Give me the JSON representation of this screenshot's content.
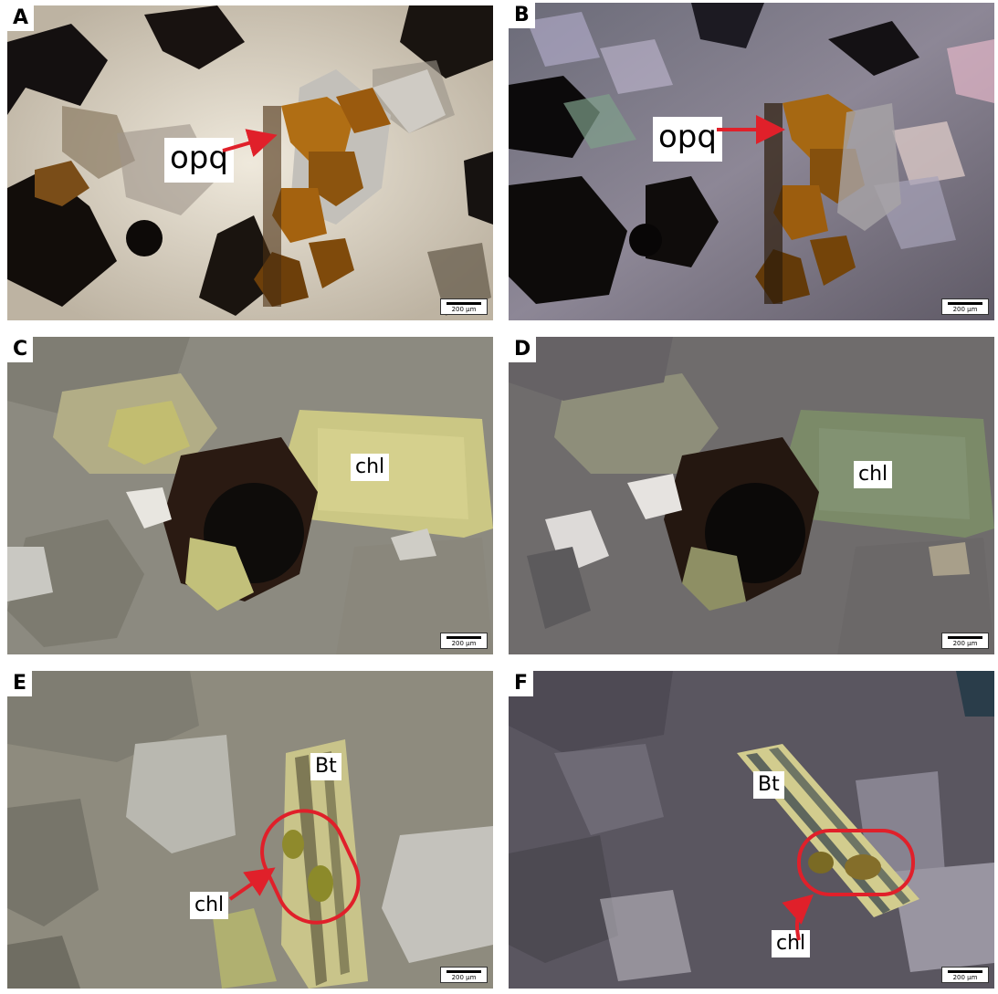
{
  "panels": [
    {
      "id": "A",
      "letter": "A",
      "scale": "200 µm",
      "labels": [
        "opq"
      ]
    },
    {
      "id": "B",
      "letter": "B",
      "scale": "200 µm",
      "labels": [
        "opq"
      ]
    },
    {
      "id": "C",
      "letter": "C",
      "scale": "200 µm",
      "labels": [
        "chl"
      ]
    },
    {
      "id": "D",
      "letter": "D",
      "scale": "200 µm",
      "labels": [
        "chl"
      ]
    },
    {
      "id": "E",
      "letter": "E",
      "scale": "200 µm",
      "labels": [
        "Bt",
        "chl"
      ]
    },
    {
      "id": "F",
      "letter": "F",
      "scale": "200 µm",
      "labels": [
        "Bt",
        "chl"
      ]
    }
  ],
  "annotation_color": "#e0202a"
}
